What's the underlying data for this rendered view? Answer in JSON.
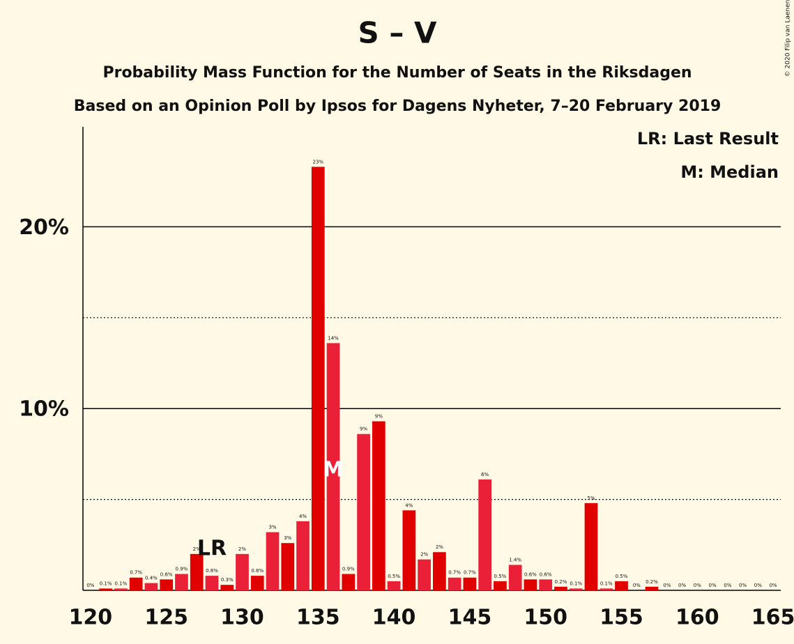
{
  "chart_data": {
    "type": "bar",
    "title": "S – V",
    "subtitle": "Probability Mass Function for the Number of Seats in the Riksdagen",
    "subtitle2": "Based on an Opinion Poll by Ipsos for Dagens Nyheter, 7–20 February 2019",
    "copyright": "© 2020 Filip van Laenen",
    "legend": [
      "LR: Last Result",
      "M: Median"
    ],
    "x": [
      120,
      121,
      122,
      123,
      124,
      125,
      126,
      127,
      128,
      129,
      130,
      131,
      132,
      133,
      134,
      135,
      136,
      137,
      138,
      139,
      140,
      141,
      142,
      143,
      144,
      145,
      146,
      147,
      148,
      149,
      150,
      151,
      152,
      153,
      154,
      155,
      156,
      157,
      158,
      159,
      160,
      161,
      162,
      163,
      164,
      165
    ],
    "values": [
      0,
      0.1,
      0.1,
      0.7,
      0.4,
      0.6,
      0.9,
      2.0,
      0.8,
      0.3,
      2.0,
      0.8,
      3.2,
      2.6,
      3.8,
      23.3,
      13.6,
      0.9,
      8.6,
      9.3,
      0.5,
      4.4,
      1.7,
      2.1,
      0.7,
      0.7,
      6.1,
      0.5,
      1.4,
      0.6,
      0.6,
      0.2,
      0.1,
      4.8,
      0.1,
      0.5,
      0,
      0.2,
      0,
      0,
      0,
      0,
      0,
      0,
      0,
      0
    ],
    "value_labels": [
      "0%",
      "0.1%",
      "0.1%",
      "0.7%",
      "0.4%",
      "0.6%",
      "0.9%",
      "2%",
      "0.8%",
      "0.3%",
      "2%",
      "0.8%",
      "3%",
      "3%",
      "4%",
      "23%",
      "14%",
      "0.9%",
      "9%",
      "9%",
      "0.5%",
      "4%",
      "2%",
      "2%",
      "0.7%",
      "0.7%",
      "6%",
      "0.5%",
      "1.4%",
      "0.6%",
      "0.6%",
      "0.2%",
      "0.1%",
      "5%",
      "0.1%",
      "0.5%",
      "0%",
      "0.2%",
      "0%",
      "0%",
      "0%",
      "0%",
      "0%",
      "0%",
      "0%",
      "0%"
    ],
    "colors": [
      "#ea2038",
      "#e00000"
    ],
    "markers": [
      {
        "x": 128,
        "label": "LR"
      },
      {
        "x": 136,
        "label": "M"
      }
    ],
    "xlim": [
      119.5,
      165.5
    ],
    "xticks": [
      120,
      125,
      130,
      135,
      140,
      145,
      150,
      155,
      160,
      165
    ],
    "ylim": [
      0,
      25.5
    ],
    "yticks": [
      {
        "value": 10,
        "label": "10%"
      },
      {
        "value": 20,
        "label": "20%"
      }
    ],
    "minor_yticks": [
      5,
      15
    ]
  }
}
